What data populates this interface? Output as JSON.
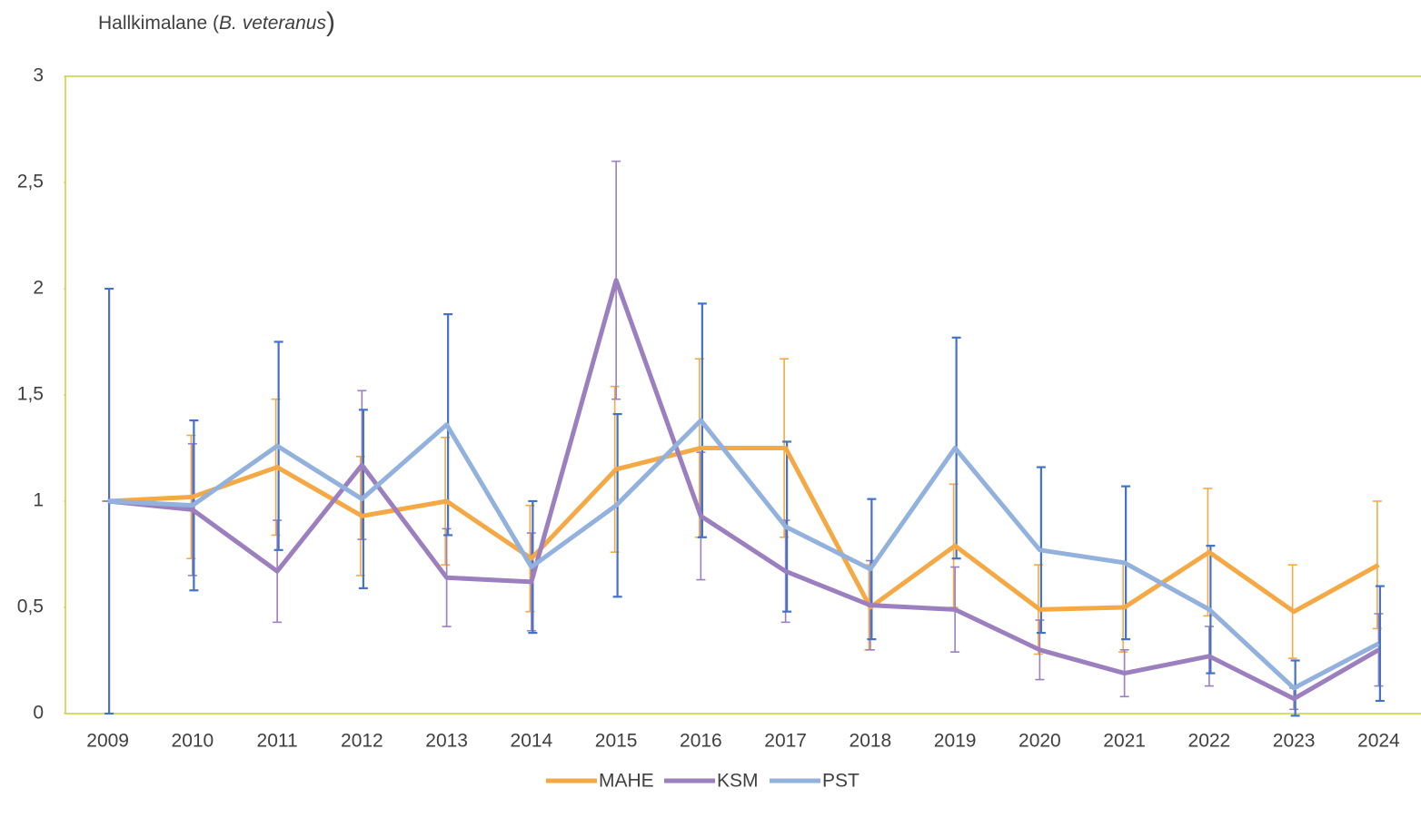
{
  "chart_data": {
    "type": "line",
    "title": [
      "Hallkimalane (",
      "B. veteranus",
      ")"
    ],
    "categories": [
      "2009",
      "2010",
      "2011",
      "2012",
      "2013",
      "2014",
      "2015",
      "2016",
      "2017",
      "2018",
      "2019",
      "2020",
      "2021",
      "2022",
      "2023",
      "2024"
    ],
    "series": [
      {
        "name": "MAHE",
        "color": "#f4a945",
        "error_color": "#f4a945",
        "values": [
          1,
          1.02,
          1.16,
          0.93,
          1.0,
          0.73,
          1.15,
          1.25,
          1.25,
          0.5,
          0.79,
          0.49,
          0.5,
          0.76,
          0.48,
          0.7
        ],
        "errors": [
          0,
          0.29,
          0.32,
          0.28,
          0.3,
          0.25,
          0.39,
          0.42,
          0.42,
          0.2,
          0.29,
          0.21,
          0.21,
          0.3,
          0.22,
          0.3
        ]
      },
      {
        "name": "KSM",
        "color": "#9b7fbf",
        "error_color": "#9b7fbf",
        "values": [
          1,
          0.96,
          0.67,
          1.17,
          0.64,
          0.62,
          2.04,
          0.93,
          0.67,
          0.51,
          0.49,
          0.3,
          0.19,
          0.27,
          0.07,
          0.3
        ],
        "errors": [
          0,
          0.31,
          0.24,
          0.35,
          0.23,
          0.23,
          0.56,
          0.3,
          0.24,
          0.21,
          0.2,
          0.14,
          0.11,
          0.14,
          0.05,
          0.17
        ]
      },
      {
        "name": "PST",
        "color": "#92b1dc",
        "error_color": "#4472c4",
        "values": [
          1,
          0.98,
          1.26,
          1.01,
          1.36,
          0.69,
          0.98,
          1.38,
          0.88,
          0.68,
          1.25,
          0.77,
          0.71,
          0.49,
          0.12,
          0.33
        ],
        "errors": [
          1.0,
          0.4,
          0.49,
          0.42,
          0.52,
          0.31,
          0.43,
          0.55,
          0.4,
          0.33,
          0.52,
          0.39,
          0.36,
          0.3,
          0.13,
          0.27
        ]
      }
    ],
    "ylim": [
      0,
      3
    ],
    "yticks": [
      0,
      {
        "value": 0.5,
        "label": "0,5"
      },
      1,
      {
        "value": 1.5,
        "label": "1,5"
      },
      2,
      {
        "value": 2.5,
        "label": "2,5"
      },
      3
    ],
    "legend": "bottom"
  }
}
